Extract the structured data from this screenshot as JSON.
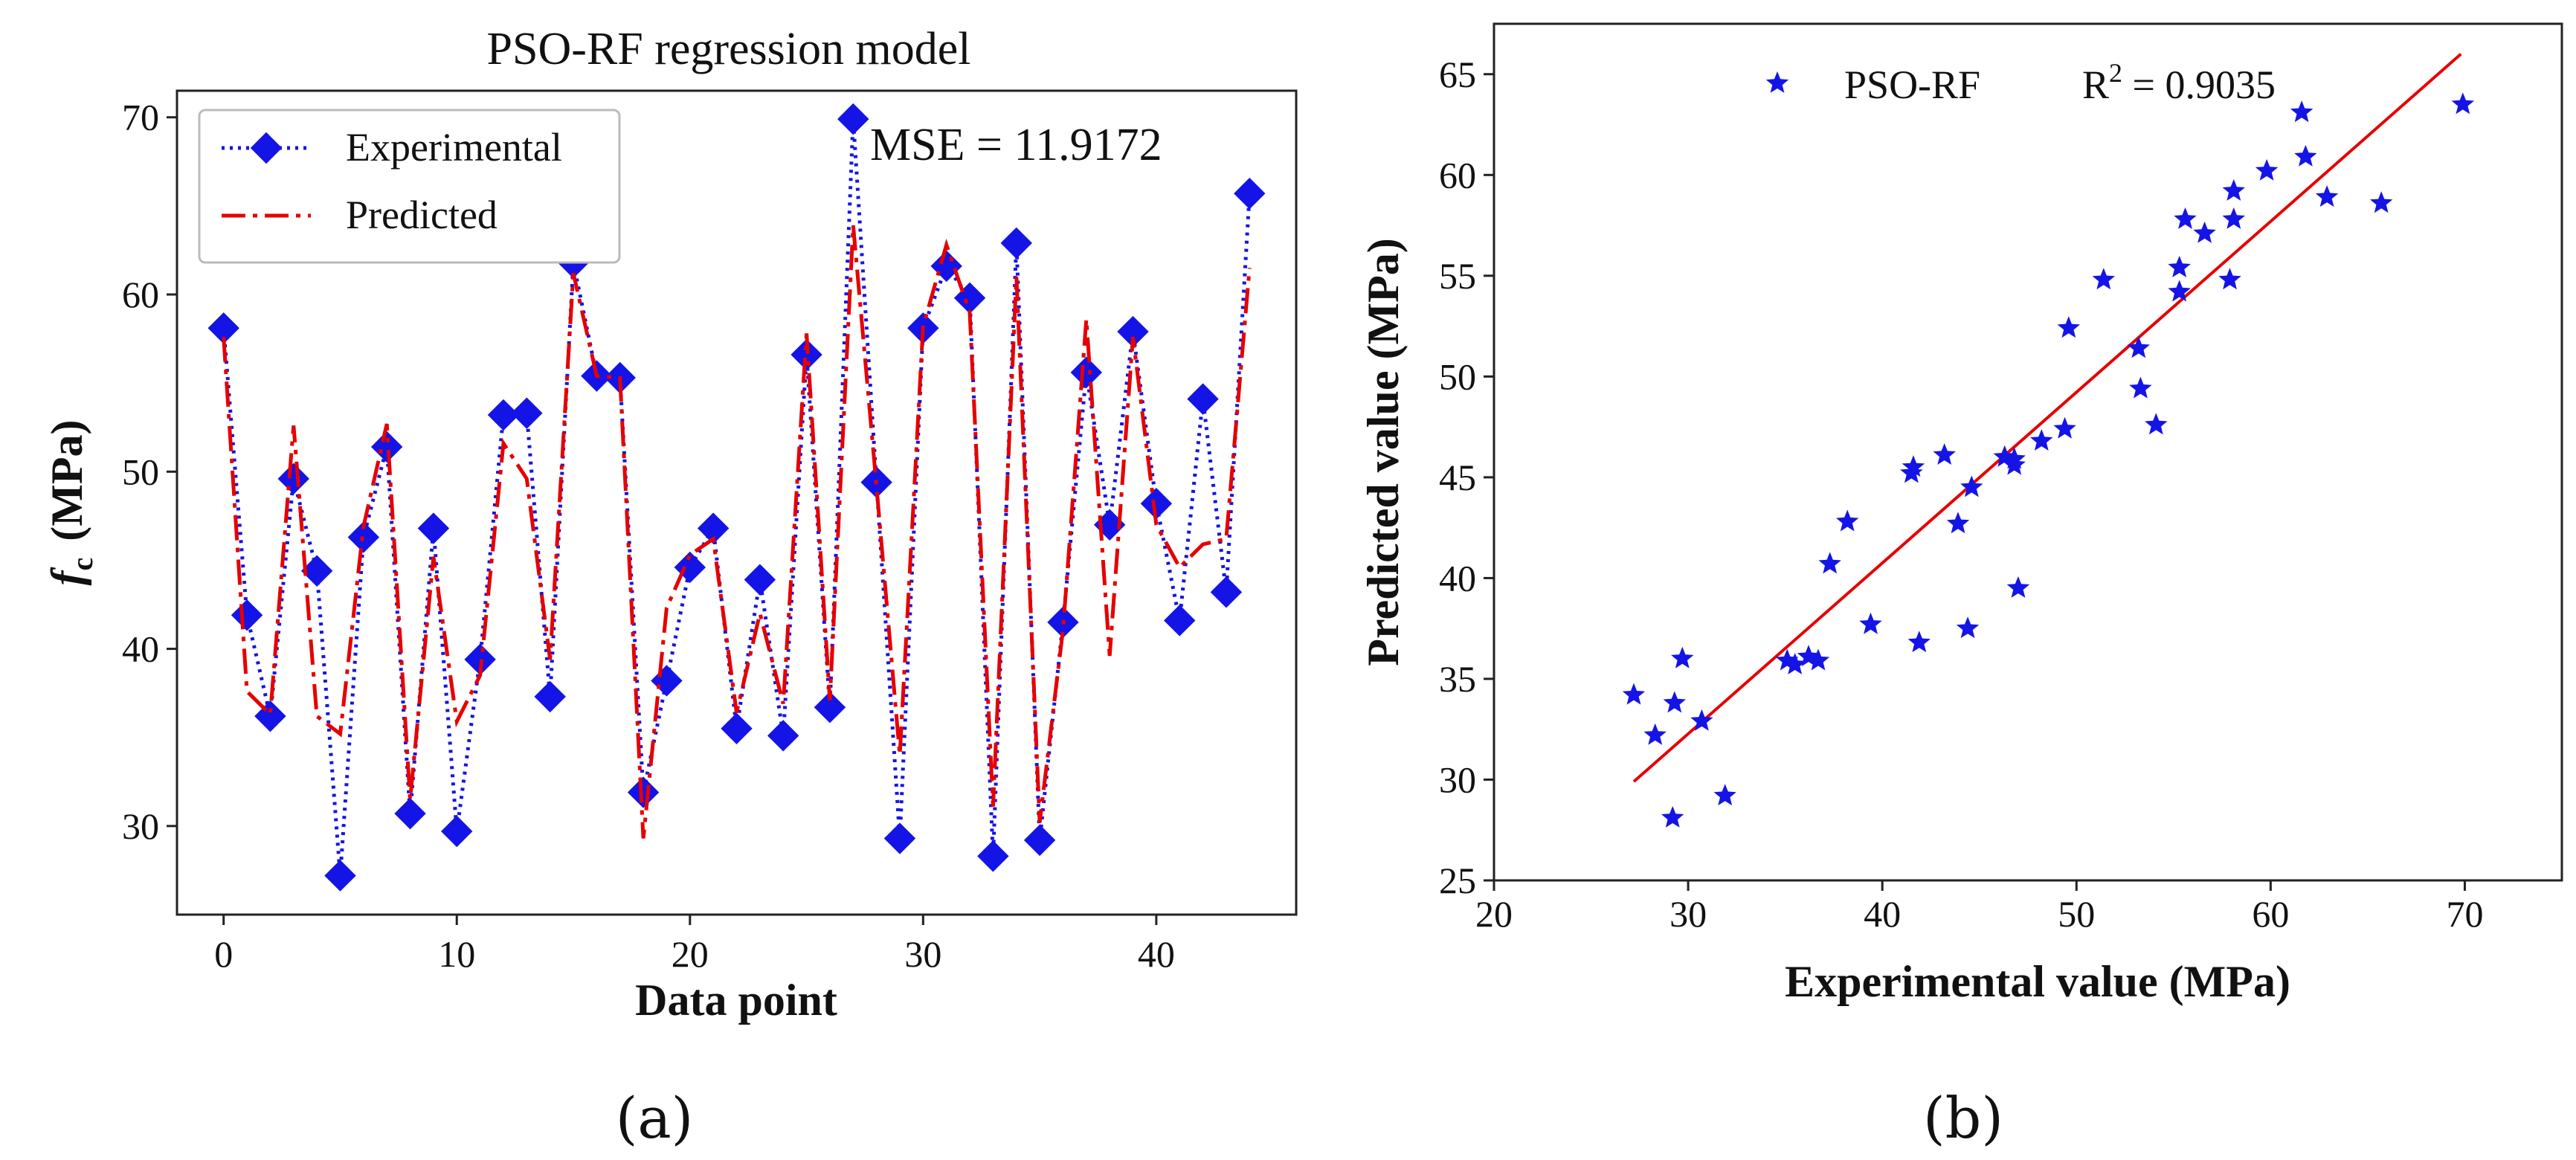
{
  "chart_data": [
    {
      "type": "line",
      "panel_label": "(a)",
      "title": "PSO-RF regression model",
      "xlabel": "Data point",
      "ylabel_main": "f",
      "ylabel_sub": "c",
      "ylabel_unit": "(MPa)",
      "xlim": [
        -2,
        46
      ],
      "ylim": [
        25,
        71.5
      ],
      "xticks": [
        0,
        10,
        20,
        30,
        40
      ],
      "yticks": [
        30,
        40,
        50,
        60,
        70
      ],
      "legend_position": "top-left",
      "annotation": "MSE = 11.9172",
      "series": [
        {
          "name": "Experimental",
          "style": "dotted-diamond",
          "color": "#1414e6",
          "x": [
            0,
            1,
            2,
            3,
            4,
            5,
            6,
            7,
            8,
            9,
            10,
            11,
            12,
            13,
            14,
            15,
            16,
            17,
            18,
            19,
            20,
            21,
            22,
            23,
            24,
            25,
            26,
            27,
            28,
            29,
            30,
            31,
            32,
            33,
            34,
            35,
            36,
            37,
            38,
            39,
            40,
            41,
            42,
            43,
            44
          ],
          "values": [
            58.1,
            41.9,
            36.2,
            49.6,
            44.4,
            27.2,
            46.3,
            51.4,
            30.7,
            46.8,
            29.7,
            39.4,
            53.2,
            53.3,
            37.3,
            61.8,
            55.4,
            55.3,
            31.9,
            38.2,
            44.6,
            46.8,
            35.5,
            43.9,
            35.1,
            56.6,
            36.7,
            69.9,
            49.4,
            29.3,
            58.1,
            61.6,
            59.8,
            28.3,
            62.9,
            29.2,
            41.5,
            55.6,
            47.0,
            57.9,
            48.2,
            41.6,
            54.1,
            43.2,
            65.7
          ]
        },
        {
          "name": "Predicted",
          "style": "dashdot",
          "color": "#e60000",
          "x": [
            0,
            1,
            2,
            3,
            4,
            5,
            6,
            7,
            8,
            9,
            10,
            11,
            12,
            13,
            14,
            15,
            16,
            17,
            18,
            19,
            20,
            21,
            22,
            23,
            24,
            25,
            26,
            27,
            28,
            29,
            30,
            31,
            32,
            33,
            34,
            35,
            36,
            37,
            38,
            39,
            40,
            41,
            42,
            43,
            44
          ],
          "values": [
            57.6,
            37.6,
            36.3,
            52.6,
            36.2,
            35.2,
            46.9,
            52.7,
            31.5,
            45.2,
            35.9,
            38.5,
            51.6,
            49.6,
            39.4,
            61.2,
            55.4,
            55.3,
            29.3,
            42.3,
            45.3,
            46.2,
            36.4,
            42.0,
            36.9,
            57.8,
            37.1,
            63.9,
            49.2,
            34.0,
            58.2,
            62.8,
            59.0,
            31.1,
            61.0,
            30.2,
            41.1,
            58.6,
            39.6,
            57.6,
            47.0,
            44.6,
            45.9,
            46.2,
            61.5
          ]
        }
      ]
    },
    {
      "type": "scatter",
      "panel_label": "(b)",
      "title": "",
      "xlabel": "Experimental value (MPa)",
      "ylabel": "Predicted value (MPa)",
      "xlim": [
        20,
        75
      ],
      "ylim": [
        25,
        67.5
      ],
      "xticks": [
        20,
        30,
        40,
        50,
        60,
        70
      ],
      "yticks": [
        25,
        30,
        35,
        40,
        45,
        50,
        55,
        60,
        65
      ],
      "legend_position": "top-center",
      "legend_label": "PSO-RF",
      "r2_label": "R",
      "r2_exp": "2",
      "r2_value": " = 0.9035",
      "series": [
        {
          "name": "PSO-RF",
          "marker": "star",
          "color": "#1414e6",
          "points": [
            [
              27.2,
              34.2
            ],
            [
              28.3,
              32.2
            ],
            [
              29.2,
              28.1
            ],
            [
              29.3,
              33.8
            ],
            [
              29.7,
              36.0
            ],
            [
              30.7,
              32.9
            ],
            [
              31.9,
              29.2
            ],
            [
              35.1,
              35.9
            ],
            [
              35.5,
              35.7
            ],
            [
              36.2,
              36.1
            ],
            [
              36.7,
              35.9
            ],
            [
              37.3,
              40.7
            ],
            [
              38.2,
              42.8
            ],
            [
              39.4,
              37.7
            ],
            [
              41.5,
              45.2
            ],
            [
              41.6,
              45.5
            ],
            [
              41.9,
              36.8
            ],
            [
              43.2,
              46.1
            ],
            [
              43.9,
              42.7
            ],
            [
              44.4,
              37.5
            ],
            [
              44.6,
              44.5
            ],
            [
              46.3,
              46.0
            ],
            [
              46.8,
              45.6
            ],
            [
              46.8,
              45.9
            ],
            [
              47.0,
              39.5
            ],
            [
              48.2,
              46.8
            ],
            [
              49.4,
              47.4
            ],
            [
              49.6,
              52.4
            ],
            [
              51.4,
              54.8
            ],
            [
              53.2,
              51.4
            ],
            [
              53.3,
              49.4
            ],
            [
              54.1,
              47.6
            ],
            [
              55.3,
              54.2
            ],
            [
              55.3,
              55.4
            ],
            [
              55.6,
              57.8
            ],
            [
              56.6,
              57.1
            ],
            [
              57.9,
              54.8
            ],
            [
              58.1,
              57.8
            ],
            [
              58.1,
              59.2
            ],
            [
              59.8,
              60.2
            ],
            [
              61.6,
              63.1
            ],
            [
              61.8,
              60.9
            ],
            [
              62.9,
              58.9
            ],
            [
              65.7,
              58.6
            ],
            [
              69.9,
              63.5
            ]
          ]
        }
      ],
      "fit_line": {
        "color": "#e60000",
        "x": [
          27.2,
          69.8
        ],
        "y": [
          29.9,
          66.0
        ]
      }
    }
  ]
}
